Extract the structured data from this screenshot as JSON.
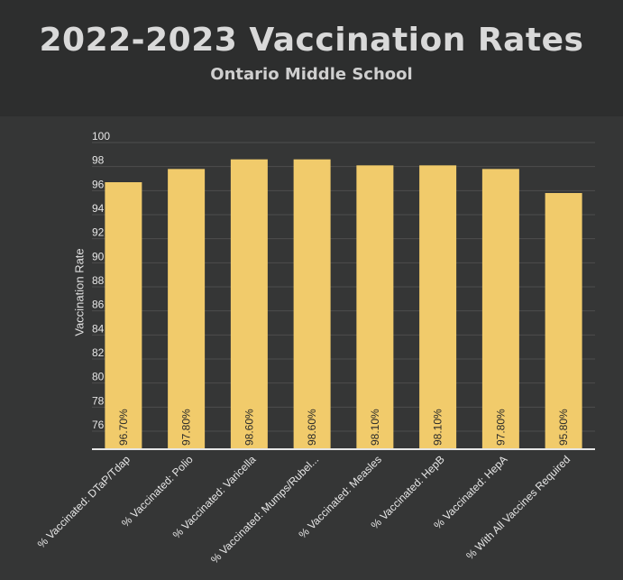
{
  "header": {
    "title": "2022-2023 Vaccination Rates",
    "subtitle": "Ontario Middle School"
  },
  "colors": {
    "background": "#353636",
    "header_background": "#2d2e2e",
    "bar": "#f1cb6b",
    "grid": "#4d4e4e",
    "axis": "#e6e6e6",
    "text": "#e6e6e6"
  },
  "chart_data": {
    "type": "bar",
    "title": "2022-2023 Vaccination Rates",
    "subtitle": "Ontario Middle School",
    "xlabel": "",
    "ylabel": "Vaccination Rate",
    "ylim": [
      74.5,
      100
    ],
    "yticks": [
      76,
      78,
      80,
      82,
      84,
      86,
      88,
      90,
      92,
      94,
      96,
      98,
      100
    ],
    "grid": true,
    "categories": [
      "% Vaccinated: DTaP/Tdap",
      "% Vaccinated: Polio",
      "% Vaccinated: Varicella",
      "% Vaccinated: Mumps/Rubel...",
      "% Vaccinated: Measles",
      "% Vaccinated: HepB",
      "% Vaccinated: HepA",
      "% With All Vaccines Required"
    ],
    "values": [
      96.7,
      97.8,
      98.6,
      98.6,
      98.1,
      98.1,
      97.8,
      95.8
    ],
    "data_labels": [
      "96.70%",
      "97.80%",
      "98.60%",
      "98.60%",
      "98.10%",
      "98.10%",
      "97.80%",
      "95.80%"
    ]
  }
}
